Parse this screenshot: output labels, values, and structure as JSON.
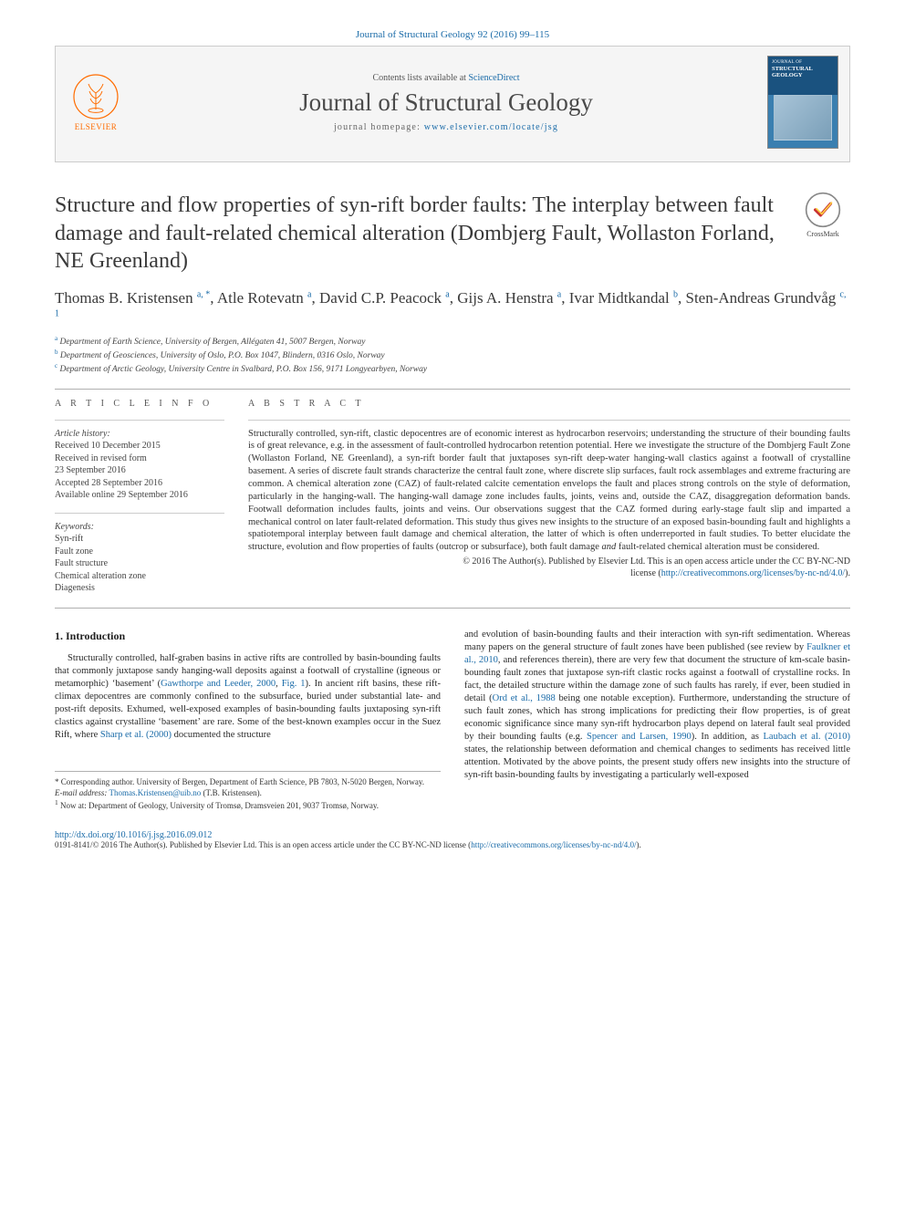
{
  "journal_ref": "Journal of Structural Geology 92 (2016) 99–115",
  "banner": {
    "contents_prefix": "Contents lists available at ",
    "sciencedirect": "ScienceDirect",
    "journal_title": "Journal of Structural Geology",
    "homepage_prefix": "journal homepage: ",
    "homepage_url": "www.elsevier.com/locate/jsg",
    "elsevier": "ELSEVIER",
    "cover_sub": "JOURNAL OF",
    "cover_main": "STRUCTURAL GEOLOGY"
  },
  "article_title": "Structure and flow properties of syn-rift border faults: The interplay between fault damage and fault-related chemical alteration (Dombjerg Fault, Wollaston Forland, NE Greenland)",
  "crossmark": "CrossMark",
  "authors_html": "Thomas B. Kristensen <sup>a, *</sup>, Atle Rotevatn <sup>a</sup>, David C.P. Peacock <sup>a</sup>, Gijs A. Henstra <sup>a</sup>, Ivar Midtkandal <sup>b</sup>, Sten-Andreas Grundvåg <sup>c, 1</sup>",
  "affiliations": [
    {
      "sup": "a",
      "text": "Department of Earth Science, University of Bergen, Allégaten 41, 5007 Bergen, Norway"
    },
    {
      "sup": "b",
      "text": "Department of Geosciences, University of Oslo, P.O. Box 1047, Blindern, 0316 Oslo, Norway"
    },
    {
      "sup": "c",
      "text": "Department of Arctic Geology, University Centre in Svalbard, P.O. Box 156, 9171 Longyearbyen, Norway"
    }
  ],
  "info": {
    "head": "A R T I C L E  I N F O",
    "history_label": "Article history:",
    "history": [
      "Received 10 December 2015",
      "Received in revised form",
      "23 September 2016",
      "Accepted 28 September 2016",
      "Available online 29 September 2016"
    ],
    "keywords_label": "Keywords:",
    "keywords": [
      "Syn-rift",
      "Fault zone",
      "Fault structure",
      "Chemical alteration zone",
      "Diagenesis"
    ]
  },
  "abstract": {
    "head": "A B S T R A C T",
    "body": "Structurally controlled, syn-rift, clastic depocentres are of economic interest as hydrocarbon reservoirs; understanding the structure of their bounding faults is of great relevance, e.g. in the assessment of fault-controlled hydrocarbon retention potential. Here we investigate the structure of the Dombjerg Fault Zone (Wollaston Forland, NE Greenland), a syn-rift border fault that juxtaposes syn-rift deep-water hanging-wall clastics against a footwall of crystalline basement. A series of discrete fault strands characterize the central fault zone, where discrete slip surfaces, fault rock assemblages and extreme fracturing are common. A chemical alteration zone (CAZ) of fault-related calcite cementation envelops the fault and places strong controls on the style of deformation, particularly in the hanging-wall. The hanging-wall damage zone includes faults, joints, veins and, outside the CAZ, disaggregation deformation bands. Footwall deformation includes faults, joints and veins. Our observations suggest that the CAZ formed during early-stage fault slip and imparted a mechanical control on later fault-related deformation. This study thus gives new insights to the structure of an exposed basin-bounding fault and highlights a spatiotemporal interplay between fault damage and chemical alteration, the latter of which is often underreported in fault studies. To better elucidate the structure, evolution and flow properties of faults (outcrop or subsurface), both fault damage ",
    "body_ital": "and",
    "body_tail": " fault-related chemical alteration must be considered.",
    "copyright1": "© 2016 The Author(s). Published by Elsevier Ltd. This is an open access article under the CC BY-NC-ND",
    "copyright2_prefix": "license (",
    "copyright2_link": "http://creativecommons.org/licenses/by-nc-nd/4.0/",
    "copyright2_suffix": ")."
  },
  "intro": {
    "heading": "1. Introduction",
    "col1_p1_a": "Structurally controlled, half-graben basins in active rifts are controlled by basin-bounding faults that commonly juxtapose sandy hanging-wall deposits against a footwall of crystalline (igneous or metamorphic) ‘basement’ (",
    "col1_p1_link1": "Gawthorpe and Leeder, 2000",
    "col1_p1_b": ", ",
    "col1_p1_link2": "Fig. 1",
    "col1_p1_c": "). In ancient rift basins, these rift-climax depocentres are commonly confined to the subsurface, buried under substantial late- and post-rift deposits. Exhumed, well-exposed examples of basin-bounding faults juxtaposing syn-rift clastics against crystalline ‘basement’ are rare. Some of the best-known examples occur in the Suez Rift, where ",
    "col1_p1_link3": "Sharp et al. (2000)",
    "col1_p1_d": " documented the structure",
    "col2_a": "and evolution of basin-bounding faults and their interaction with syn-rift sedimentation. Whereas many papers on the general structure of fault zones have been published (see review by ",
    "col2_link1": "Faulkner et al., 2010",
    "col2_b": ", and references therein), there are very few that document the structure of km-scale basin-bounding fault zones that juxtapose syn-rift clastic rocks against a footwall of crystalline rocks. In fact, the detailed structure within the damage zone of such faults has rarely, if ever, been studied in detail (",
    "col2_link2": "Ord et al., 1988",
    "col2_c": " being one notable exception). Furthermore, understanding the structure of such fault zones, which has strong implications for predicting their flow properties, is of great economic significance since many syn-rift hydrocarbon plays depend on lateral fault seal provided by their bounding faults (e.g. ",
    "col2_link3": "Spencer and Larsen, 1990",
    "col2_d": "). In addition, as ",
    "col2_link4": "Laubach et al. (2010)",
    "col2_e": " states, the relationship between deformation and chemical changes to sediments has received little attention. Motivated by the above points, the present study offers new insights into the structure of syn-rift basin-bounding faults by investigating a particularly well-exposed"
  },
  "footnotes": {
    "corr": "* Corresponding author. University of Bergen, Department of Earth Science, PB 7803, N-5020 Bergen, Norway.",
    "email_label": "E-mail address:",
    "email": "Thomas.Kristensen@uib.no",
    "email_who": "(T.B. Kristensen).",
    "now1_sup": "1",
    "now1": " Now at: Department of Geology, University of Tromsø, Dramsveien 201, 9037 Tromsø, Norway."
  },
  "footer": {
    "doi": "http://dx.doi.org/10.1016/j.jsg.2016.09.012",
    "issn_line_a": "0191-8141/© 2016 The Author(s). Published by Elsevier Ltd. This is an open access article under the CC BY-NC-ND license (",
    "issn_link": "http://creativecommons.org/licenses/by-nc-nd/4.0/",
    "issn_line_b": ")."
  },
  "colors": {
    "link": "#1a6ba8",
    "text": "#2a2a2a",
    "banner_bg": "#f5f5f5",
    "border": "#b0b0b0",
    "orange": "#ff6c00"
  }
}
